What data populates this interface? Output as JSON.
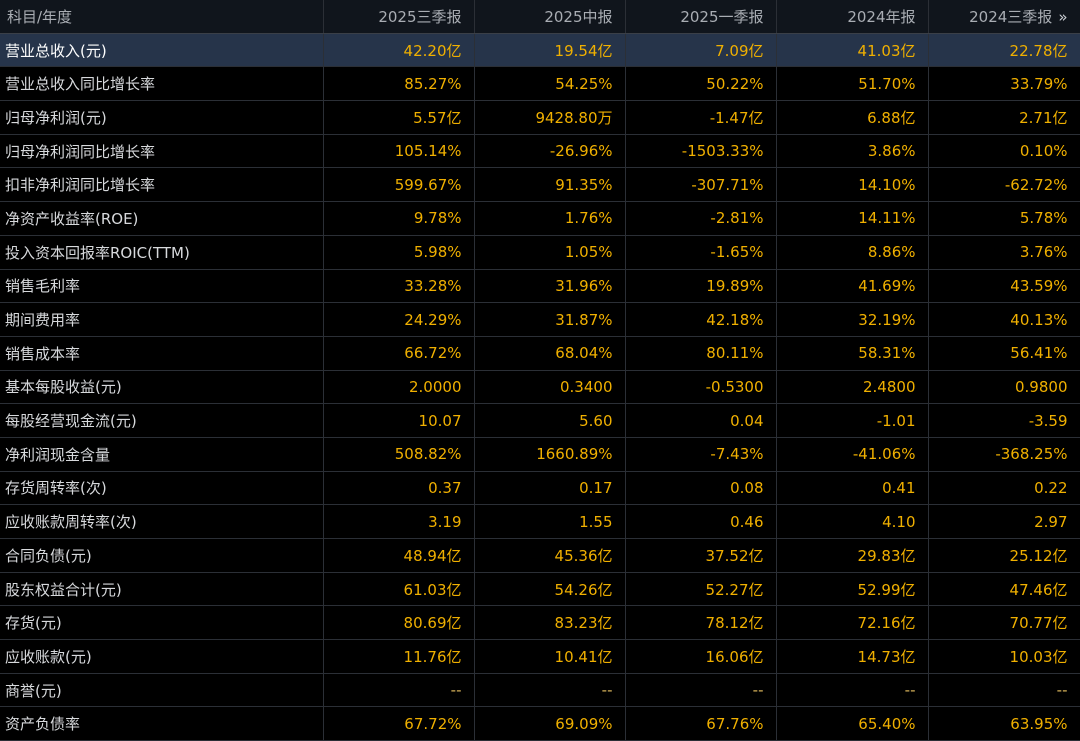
{
  "header": {
    "label": "科目/年度",
    "periods": [
      "2025三季报",
      "2025中报",
      "2025一季报",
      "2024年报",
      "2024三季报"
    ],
    "more_icon": "»"
  },
  "selected_row": 0,
  "rows": [
    {
      "label": "营业总收入(元)",
      "values": [
        "42.20亿",
        "19.54亿",
        "7.09亿",
        "41.03亿",
        "22.78亿"
      ]
    },
    {
      "label": "营业总收入同比增长率",
      "values": [
        "85.27%",
        "54.25%",
        "50.22%",
        "51.70%",
        "33.79%"
      ]
    },
    {
      "label": "归母净利润(元)",
      "values": [
        "5.57亿",
        "9428.80万",
        "-1.47亿",
        "6.88亿",
        "2.71亿"
      ]
    },
    {
      "label": "归母净利润同比增长率",
      "values": [
        "105.14%",
        "-26.96%",
        "-1503.33%",
        "3.86%",
        "0.10%"
      ]
    },
    {
      "label": "扣非净利润同比增长率",
      "values": [
        "599.67%",
        "91.35%",
        "-307.71%",
        "14.10%",
        "-62.72%"
      ]
    },
    {
      "label": "净资产收益率(ROE)",
      "values": [
        "9.78%",
        "1.76%",
        "-2.81%",
        "14.11%",
        "5.78%"
      ]
    },
    {
      "label": "投入资本回报率ROIC(TTM)",
      "values": [
        "5.98%",
        "1.05%",
        "-1.65%",
        "8.86%",
        "3.76%"
      ]
    },
    {
      "label": "销售毛利率",
      "values": [
        "33.28%",
        "31.96%",
        "19.89%",
        "41.69%",
        "43.59%"
      ]
    },
    {
      "label": "期间费用率",
      "values": [
        "24.29%",
        "31.87%",
        "42.18%",
        "32.19%",
        "40.13%"
      ]
    },
    {
      "label": "销售成本率",
      "values": [
        "66.72%",
        "68.04%",
        "80.11%",
        "58.31%",
        "56.41%"
      ]
    },
    {
      "label": "基本每股收益(元)",
      "values": [
        "2.0000",
        "0.3400",
        "-0.5300",
        "2.4800",
        "0.9800"
      ]
    },
    {
      "label": "每股经营现金流(元)",
      "values": [
        "10.07",
        "5.60",
        "0.04",
        "-1.01",
        "-3.59"
      ]
    },
    {
      "label": "净利润现金含量",
      "values": [
        "508.82%",
        "1660.89%",
        "-7.43%",
        "-41.06%",
        "-368.25%"
      ]
    },
    {
      "label": "存货周转率(次)",
      "values": [
        "0.37",
        "0.17",
        "0.08",
        "0.41",
        "0.22"
      ]
    },
    {
      "label": "应收账款周转率(次)",
      "values": [
        "3.19",
        "1.55",
        "0.46",
        "4.10",
        "2.97"
      ]
    },
    {
      "label": "合同负债(元)",
      "values": [
        "48.94亿",
        "45.36亿",
        "37.52亿",
        "29.83亿",
        "25.12亿"
      ]
    },
    {
      "label": "股东权益合计(元)",
      "values": [
        "61.03亿",
        "54.26亿",
        "52.27亿",
        "52.99亿",
        "47.46亿"
      ]
    },
    {
      "label": "存货(元)",
      "values": [
        "80.69亿",
        "83.23亿",
        "78.12亿",
        "72.16亿",
        "70.77亿"
      ]
    },
    {
      "label": "应收账款(元)",
      "values": [
        "11.76亿",
        "10.41亿",
        "16.06亿",
        "14.73亿",
        "10.03亿"
      ]
    },
    {
      "label": "商誉(元)",
      "values": [
        "--",
        "--",
        "--",
        "--",
        "--"
      ]
    },
    {
      "label": "资产负债率",
      "values": [
        "67.72%",
        "69.09%",
        "67.76%",
        "65.40%",
        "63.95%"
      ]
    }
  ]
}
